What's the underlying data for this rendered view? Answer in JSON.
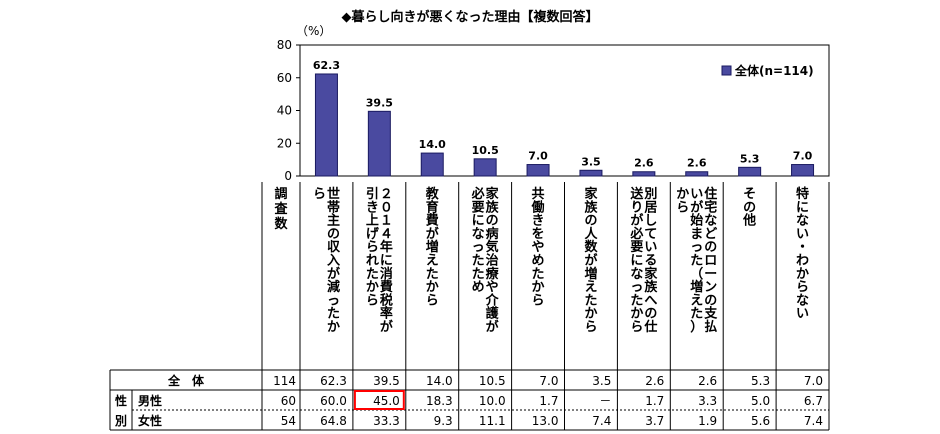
{
  "title": "◆暮らし向きが悪くなった理由【複数回答】",
  "unit_label": "（%）",
  "colors": {
    "bar": "#4a4aa0",
    "bar_stroke": "#1a1a60",
    "highlight": "#ff0000"
  },
  "chart_data": {
    "type": "bar",
    "title": "◆暮らし向きが悪くなった理由【複数回答】",
    "ylim": [
      0,
      80
    ],
    "yticks": [
      "0",
      "20",
      "40",
      "60",
      "80"
    ],
    "legend": {
      "label": "全体(n=114)",
      "position": "top-right"
    },
    "survey_count_header": "調査数",
    "categories": [
      "世帯主の収入が減ったから",
      "２０１４年に消費税率が引き上げられたから",
      "教育費が増えたから",
      "家族の病気治療や介護が必要になったため",
      "共働きをやめたから",
      "家族の人数が増えたから",
      "別居している家族への仕送りが必要になったから",
      "住宅などのローンの支払いが始まった（増えた）から",
      "その他",
      "特にない・わからない"
    ],
    "category_columns": [
      [
        "世帯主の収入が減ったか",
        "ら"
      ],
      [
        "２０１４年に消費税率が",
        "引き上げられたから"
      ],
      [
        "教育費が増えたから"
      ],
      [
        "家族の病気治療や介護が",
        "必要になったため"
      ],
      [
        "共働きをやめたから"
      ],
      [
        "家族の人数が増えたから"
      ],
      [
        "別居している家族への仕",
        "送りが必要になったから"
      ],
      [
        "住宅などのローンの支払",
        "いが始まった（増えた）",
        "から"
      ],
      [
        "その他"
      ],
      [
        "特にない・わからない"
      ]
    ],
    "values": [
      62.3,
      39.5,
      14.0,
      10.5,
      7.0,
      3.5,
      2.6,
      2.6,
      5.3,
      7.0
    ],
    "value_labels": [
      "62.3",
      "39.5",
      "14.0",
      "10.5",
      "7.0",
      "3.5",
      "2.6",
      "2.6",
      "5.3",
      "7.0"
    ],
    "table": {
      "rows": [
        {
          "group": "",
          "label": "全　体",
          "count": "114",
          "cells": [
            "62.3",
            "39.5",
            "14.0",
            "10.5",
            "7.0",
            "3.5",
            "2.6",
            "2.6",
            "5.3",
            "7.0"
          ]
        },
        {
          "group": "性別",
          "label": "男性",
          "count": "60",
          "cells": [
            "60.0",
            "45.0",
            "18.3",
            "10.0",
            "1.7",
            "－",
            "1.7",
            "3.3",
            "5.0",
            "6.7"
          ],
          "highlight_index": 1
        },
        {
          "group": "性別",
          "label": "女性",
          "count": "54",
          "cells": [
            "64.8",
            "33.3",
            "9.3",
            "11.1",
            "13.0",
            "7.4",
            "3.7",
            "1.9",
            "5.6",
            "7.4"
          ]
        }
      ],
      "group_label": "性別"
    }
  }
}
